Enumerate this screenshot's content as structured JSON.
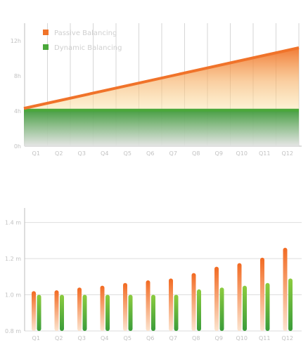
{
  "chart_data": [
    {
      "type": "area",
      "categories": [
        "Q1",
        "Q2",
        "Q3",
        "Q4",
        "Q5",
        "Q6",
        "Q7",
        "Q8",
        "Q9",
        "Q10",
        "Q11",
        "Q12"
      ],
      "yticks": [
        "0h",
        "4h",
        "8h",
        "12h"
      ],
      "ylim": [
        0,
        14
      ],
      "grid": true,
      "legend": "top-left",
      "series": [
        {
          "name": "Passive Balancing",
          "color": "#f0732a",
          "start": 4.3,
          "end": 11.2
        },
        {
          "name": "Dynamic Balancing",
          "color": "#4aa83a",
          "start": 4.1,
          "end": 4.1
        }
      ]
    },
    {
      "type": "bar",
      "categories": [
        "Q1",
        "Q2",
        "Q3",
        "Q4",
        "Q5",
        "Q6",
        "Q7",
        "Q8",
        "Q9",
        "Q10",
        "Q11",
        "Q12"
      ],
      "yticks": [
        "0.8 m",
        "1.0 m",
        "1.2 m",
        "1.4 m"
      ],
      "ylim": [
        0.8,
        1.48
      ],
      "grid": true,
      "series": [
        {
          "name": "Passive Balancing",
          "color": "#f0732a",
          "values": [
            1.02,
            1.025,
            1.04,
            1.05,
            1.065,
            1.08,
            1.09,
            1.12,
            1.155,
            1.175,
            1.205,
            1.26
          ]
        },
        {
          "name": "Dynamic Balancing",
          "color": "#5cb13e",
          "values": [
            1.0,
            1.0,
            1.0,
            1.0,
            1.0,
            1.0,
            1.0,
            1.03,
            1.04,
            1.05,
            1.065,
            1.09
          ]
        }
      ]
    }
  ]
}
